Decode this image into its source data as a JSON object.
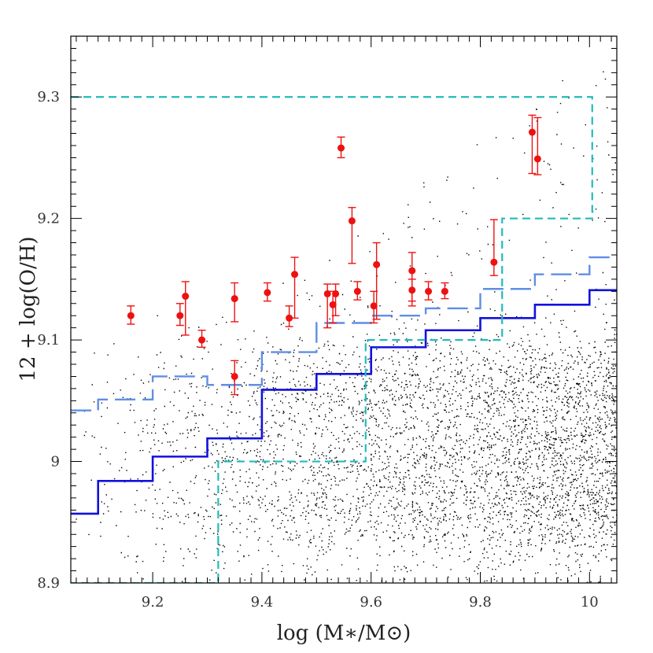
{
  "chart_data": {
    "type": "scatter",
    "title": "",
    "xlabel": "log (M∗/M⊙)",
    "ylabel": "12 + log(O/H)",
    "xlim": [
      9.05,
      10.05
    ],
    "ylim": [
      8.9,
      9.35
    ],
    "x_ticks": [
      "9.2",
      "9.4",
      "9.6",
      "9.8",
      "10"
    ],
    "x_tick_values": [
      9.2,
      9.4,
      9.6,
      9.8,
      10.0
    ],
    "y_ticks": [
      "8.9",
      "9",
      "9.1",
      "9.2",
      "9.3"
    ],
    "y_tick_values": [
      8.9,
      9.0,
      9.1,
      9.2,
      9.3
    ],
    "grid": false,
    "legend": "none",
    "series": [
      {
        "style": "red points with error bars",
        "color": "#ee1111",
        "points": [
          {
            "x": 9.16,
            "y": 9.12,
            "lo": 9.113,
            "hi": 9.128
          },
          {
            "x": 9.25,
            "y": 9.12,
            "lo": 9.112,
            "hi": 9.13
          },
          {
            "x": 9.26,
            "y": 9.136,
            "lo": 9.104,
            "hi": 9.148
          },
          {
            "x": 9.29,
            "y": 9.1,
            "lo": 9.094,
            "hi": 9.108
          },
          {
            "x": 9.35,
            "y": 9.134,
            "lo": 9.115,
            "hi": 9.147
          },
          {
            "x": 9.35,
            "y": 9.07,
            "lo": 9.055,
            "hi": 9.083
          },
          {
            "x": 9.41,
            "y": 9.139,
            "lo": 9.132,
            "hi": 9.147
          },
          {
            "x": 9.45,
            "y": 9.118,
            "lo": 9.111,
            "hi": 9.128
          },
          {
            "x": 9.46,
            "y": 9.154,
            "lo": 9.118,
            "hi": 9.168
          },
          {
            "x": 9.52,
            "y": 9.138,
            "lo": 9.11,
            "hi": 9.146
          },
          {
            "x": 9.53,
            "y": 9.129,
            "lo": 9.114,
            "hi": 9.14
          },
          {
            "x": 9.535,
            "y": 9.138,
            "lo": 9.12,
            "hi": 9.146
          },
          {
            "x": 9.545,
            "y": 9.258,
            "lo": 9.25,
            "hi": 9.267
          },
          {
            "x": 9.565,
            "y": 9.198,
            "lo": 9.163,
            "hi": 9.209
          },
          {
            "x": 9.575,
            "y": 9.14,
            "lo": 9.133,
            "hi": 9.148
          },
          {
            "x": 9.605,
            "y": 9.128,
            "lo": 9.114,
            "hi": 9.14
          },
          {
            "x": 9.61,
            "y": 9.162,
            "lo": 9.117,
            "hi": 9.18
          },
          {
            "x": 9.675,
            "y": 9.157,
            "lo": 9.132,
            "hi": 9.172
          },
          {
            "x": 9.675,
            "y": 9.141,
            "lo": 9.128,
            "hi": 9.15
          },
          {
            "x": 9.705,
            "y": 9.14,
            "lo": 9.133,
            "hi": 9.148
          },
          {
            "x": 9.735,
            "y": 9.14,
            "lo": 9.134,
            "hi": 9.147
          },
          {
            "x": 9.825,
            "y": 9.164,
            "lo": 9.153,
            "hi": 9.199
          },
          {
            "x": 9.895,
            "y": 9.271,
            "lo": 9.237,
            "hi": 9.285
          },
          {
            "x": 9.905,
            "y": 9.249,
            "lo": 9.236,
            "hi": 9.283
          }
        ]
      },
      {
        "style": "solid blue step line",
        "color": "#1111dd",
        "steps": [
          [
            9.05,
            8.957
          ],
          [
            9.1,
            8.984
          ],
          [
            9.2,
            9.004
          ],
          [
            9.3,
            9.019
          ],
          [
            9.4,
            9.059
          ],
          [
            9.5,
            9.072
          ],
          [
            9.6,
            9.094
          ],
          [
            9.7,
            9.108
          ],
          [
            9.8,
            9.118
          ],
          [
            9.9,
            9.129
          ],
          [
            10.0,
            9.141
          ]
        ]
      },
      {
        "style": "long-dashed light blue step line",
        "color": "#5f8ee6",
        "steps": [
          [
            9.05,
            9.042
          ],
          [
            9.1,
            9.051
          ],
          [
            9.2,
            9.07
          ],
          [
            9.3,
            9.063
          ],
          [
            9.4,
            9.09
          ],
          [
            9.5,
            9.114
          ],
          [
            9.6,
            9.12
          ],
          [
            9.7,
            9.126
          ],
          [
            9.8,
            9.142
          ],
          [
            9.9,
            9.154
          ],
          [
            10.0,
            9.168
          ]
        ]
      },
      {
        "style": "short-dashed cyan box outline",
        "color": "#22bbbb",
        "outline": [
          [
            9.05,
            9.3
          ],
          [
            10.005,
            9.3
          ],
          [
            10.005,
            9.2
          ],
          [
            9.84,
            9.2
          ],
          [
            9.84,
            9.1
          ],
          [
            9.59,
            9.1
          ],
          [
            9.59,
            9.0
          ],
          [
            9.32,
            9.0
          ],
          [
            9.32,
            8.9
          ],
          [
            9.05,
            8.9
          ]
        ]
      },
      {
        "style": "black background points (galaxy sample)",
        "color": "#000000",
        "count": 9000,
        "bands_y": [
          8.96,
          9.01,
          9.065
        ]
      }
    ]
  }
}
